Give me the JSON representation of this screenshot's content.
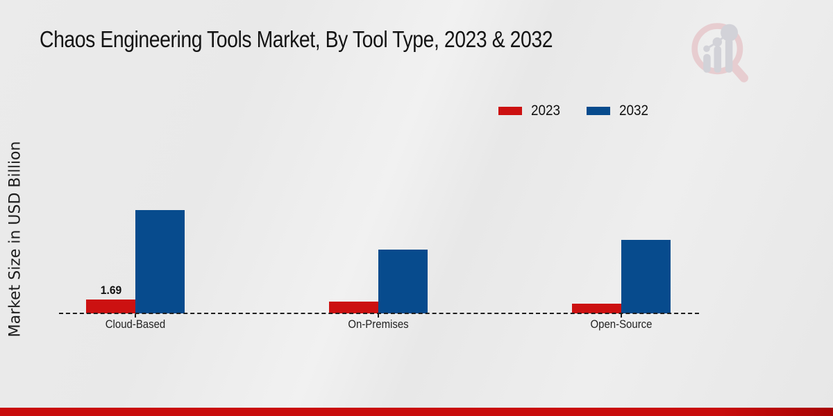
{
  "page": {
    "background": "#e9e9e9",
    "footer_color_left": "#c90c0c",
    "footer_color_right": "#a80404"
  },
  "watermark": {
    "name": "market-research-future-logo",
    "ring_color": "#e7cdd0",
    "bars_color": "#d2d2d8"
  },
  "chart_data": {
    "type": "bar",
    "title": "Chaos Engineering Tools Market, By Tool Type, 2023 & 2032",
    "ylabel": "Market Size in USD Billion",
    "xlabel": "",
    "categories": [
      "Cloud-Based",
      "On-Premises",
      "Open-Source"
    ],
    "series": [
      {
        "name": "2023",
        "color": "#cc1111",
        "values": [
          1.69,
          1.5,
          1.2
        ],
        "labels": [
          "1.69",
          "",
          ""
        ]
      },
      {
        "name": "2032",
        "color": "#074b8d",
        "values": [
          12.8,
          7.9,
          9.1
        ],
        "labels": [
          "",
          "",
          ""
        ]
      }
    ],
    "ylim": [
      0,
      14
    ],
    "grid": false,
    "axis_style": "dashed-baseline-only",
    "legend_position": "top-right",
    "legend_labels": [
      "2023",
      "2032"
    ]
  }
}
